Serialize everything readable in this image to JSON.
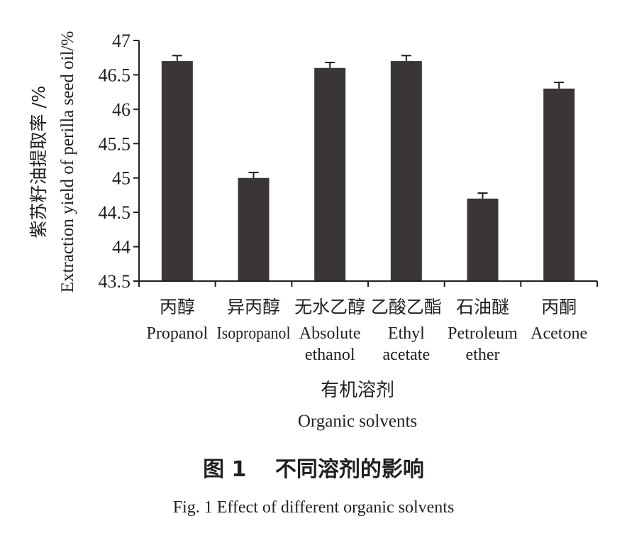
{
  "chart_data": {
    "type": "bar",
    "categories_cn": [
      "丙醇",
      "异丙醇",
      "无水乙醇",
      "乙酸乙酯",
      "石油醚",
      "丙酮"
    ],
    "categories_en": [
      [
        "Propanol"
      ],
      [
        "Isopropanol"
      ],
      [
        "Absolute",
        "ethanol"
      ],
      [
        "Ethyl",
        "acetate"
      ],
      [
        "Petroleum",
        "ether"
      ],
      [
        "Acetone"
      ]
    ],
    "values": [
      46.7,
      45.0,
      46.6,
      46.7,
      44.7,
      46.3
    ],
    "errors": [
      0.08,
      0.08,
      0.08,
      0.08,
      0.08,
      0.09
    ],
    "ylim": [
      43.5,
      47
    ],
    "yticks": [
      43.5,
      44,
      44.5,
      45,
      45.5,
      46,
      46.5,
      47
    ],
    "ytick_labels": [
      "43.5",
      "44",
      "44.5",
      "45",
      "45.5",
      "46",
      "46.5",
      "47"
    ],
    "ylabel_cn": "紫苏籽油提取率 /%",
    "ylabel_en": "Extraction yield of perilla seed oil/%",
    "xlabel_cn": "有机溶剂",
    "xlabel_en": "Organic solvents",
    "bar_color": "#3a3637",
    "grid": false
  },
  "figure": {
    "title_cn": "图 1　 不同溶剂的影响",
    "title_en": "Fig. 1 Effect of different organic solvents"
  }
}
